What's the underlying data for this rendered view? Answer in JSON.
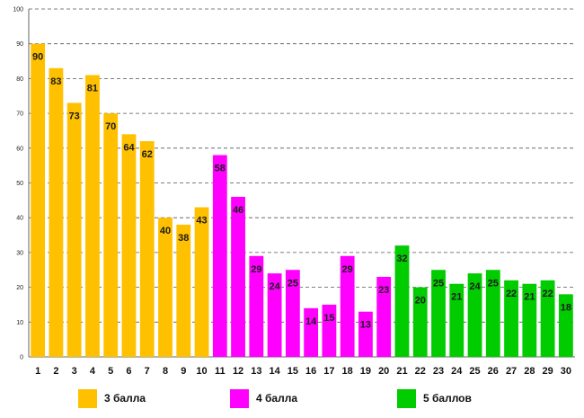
{
  "chart_data": {
    "type": "bar",
    "categories": [
      "1",
      "2",
      "3",
      "4",
      "5",
      "6",
      "7",
      "8",
      "9",
      "10",
      "11",
      "12",
      "13",
      "14",
      "15",
      "16",
      "17",
      "18",
      "19",
      "20",
      "21",
      "22",
      "23",
      "24",
      "25",
      "26",
      "27",
      "28",
      "29",
      "30"
    ],
    "values": [
      90,
      83,
      73,
      81,
      70,
      64,
      62,
      40,
      38,
      43,
      58,
      46,
      29,
      24,
      25,
      14,
      15,
      29,
      13,
      23,
      32,
      20,
      25,
      21,
      24,
      25,
      22,
      21,
      22,
      18
    ],
    "groups": [
      0,
      0,
      0,
      0,
      0,
      0,
      0,
      0,
      0,
      0,
      1,
      1,
      1,
      1,
      1,
      1,
      1,
      1,
      1,
      1,
      2,
      2,
      2,
      2,
      2,
      2,
      2,
      2,
      2,
      2
    ],
    "ylim": [
      0,
      100
    ],
    "yticks": [
      "0",
      "10",
      "20",
      "30",
      "40",
      "50",
      "60",
      "70",
      "80",
      "90",
      "100"
    ],
    "grid": true,
    "title": "",
    "xlabel": "",
    "ylabel": "",
    "legend_position": "bottom",
    "series": [
      {
        "name": "3 балла",
        "color": "#FFC000"
      },
      {
        "name": "4 балла",
        "color": "#FF00FF"
      },
      {
        "name": "5 баллов",
        "color": "#00CC00"
      }
    ]
  }
}
